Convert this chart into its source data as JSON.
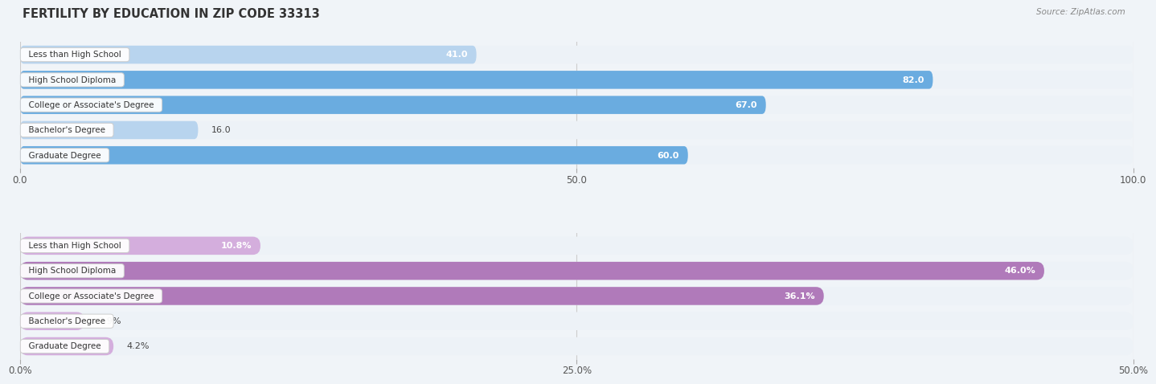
{
  "title": "FERTILITY BY EDUCATION IN ZIP CODE 33313",
  "source": "Source: ZipAtlas.com",
  "top_chart": {
    "categories": [
      "Less than High School",
      "High School Diploma",
      "College or Associate's Degree",
      "Bachelor's Degree",
      "Graduate Degree"
    ],
    "values": [
      41.0,
      82.0,
      67.0,
      16.0,
      60.0
    ],
    "xmax": 100.0,
    "xticks": [
      0.0,
      50.0,
      100.0
    ],
    "xtick_labels": [
      "0.0",
      "50.0",
      "100.0"
    ],
    "bar_color_strong": "#6aace0",
    "bar_color_light": "#b8d4ee",
    "row_bg_color": "#edf2f7",
    "strong_indices": [
      1,
      2,
      4
    ],
    "light_indices": [
      0,
      3
    ],
    "value_suffix": ""
  },
  "bottom_chart": {
    "categories": [
      "Less than High School",
      "High School Diploma",
      "College or Associate's Degree",
      "Bachelor's Degree",
      "Graduate Degree"
    ],
    "values": [
      10.8,
      46.0,
      36.1,
      2.9,
      4.2
    ],
    "xmax": 50.0,
    "xticks": [
      0.0,
      25.0,
      50.0
    ],
    "xtick_labels": [
      "0.0%",
      "25.0%",
      "50.0%"
    ],
    "bar_color_strong": "#b07aba",
    "bar_color_light": "#d4aedd",
    "row_bg_color": "#edf2f7",
    "strong_indices": [
      1,
      2
    ],
    "light_indices": [
      0,
      3,
      4
    ],
    "value_suffix": "%"
  },
  "label_fontsize": 7.5,
  "value_fontsize": 8.0,
  "title_fontsize": 10.5,
  "bg_color": "#f0f4f8",
  "chart_bg": "#f0f4f8"
}
